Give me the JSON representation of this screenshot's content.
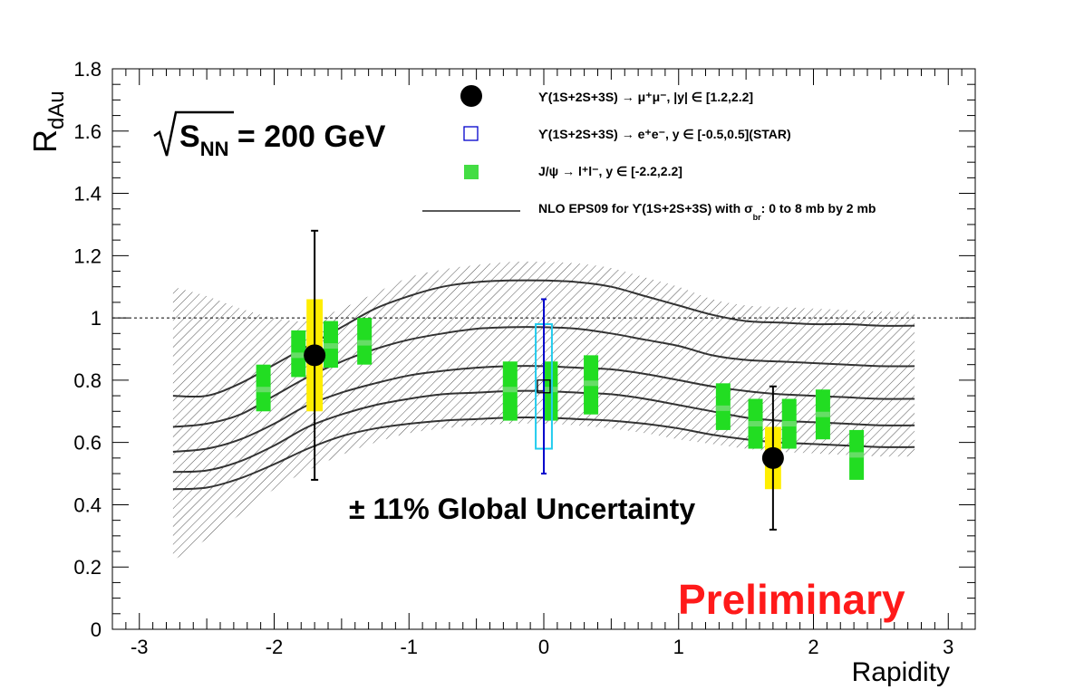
{
  "chart_data": {
    "type": "scatter",
    "ylabel_main": "R",
    "ylabel_sub": "dAu",
    "xlabel": "Rapidity",
    "xlim": [
      -3.2,
      3.2
    ],
    "ylim": [
      0,
      1.8
    ],
    "x_ticks": [
      {
        "value": -3,
        "label": "-3"
      },
      {
        "value": -2,
        "label": "-2"
      },
      {
        "value": -1,
        "label": "-1"
      },
      {
        "value": 0,
        "label": "0"
      },
      {
        "value": 1,
        "label": "1"
      },
      {
        "value": 2,
        "label": "2"
      },
      {
        "value": 3,
        "label": "3"
      }
    ],
    "y_ticks": [
      {
        "value": 0,
        "label": "0"
      },
      {
        "value": 0.2,
        "label": "0.2"
      },
      {
        "value": 0.4,
        "label": "0.4"
      },
      {
        "value": 0.6,
        "label": "0.6"
      },
      {
        "value": 0.8,
        "label": "0.8"
      },
      {
        "value": 1.0,
        "label": "1"
      },
      {
        "value": 1.2,
        "label": "1.2"
      },
      {
        "value": 1.4,
        "label": "1.4"
      },
      {
        "value": 1.6,
        "label": "1.6"
      },
      {
        "value": 1.8,
        "label": "1.8"
      }
    ],
    "reference_line": 1.0,
    "energy_label": {
      "prefix": "S",
      "sub": "NN",
      "suffix": " = 200 GeV"
    },
    "global_uncertainty": "± 11% Global Uncertainty",
    "watermark": "Preliminary",
    "legend": [
      {
        "marker": "filled-circle",
        "text": "ϒ(1S+2S+3S)  → μ⁺μ⁻, |y| ∈ [1.2,2.2]"
      },
      {
        "marker": "open-square",
        "text": "ϒ(1S+2S+3S)  → e⁺e⁻, y ∈ [-0.5,0.5](STAR)"
      },
      {
        "marker": "green-box",
        "text": "J/ψ → l⁺l⁻, y ∈ [-2.2,2.2]"
      },
      {
        "marker": "line",
        "text": "NLO EPS09 for  ϒ(1S+2S+3S) with  σ",
        "sub": "br",
        "suffix": ": 0 to 8 mb by 2 mb"
      }
    ],
    "series": [
      {
        "name": "Upsilon dimuon",
        "color": "#000000",
        "points": [
          {
            "x": -1.7,
            "y": 0.88,
            "stat_low": 0.48,
            "stat_high": 1.28,
            "sys_low": 0.7,
            "sys_high": 1.06,
            "sys_half_width": 0.06
          },
          {
            "x": 1.7,
            "y": 0.55,
            "stat_low": 0.32,
            "stat_high": 0.78,
            "sys_low": 0.45,
            "sys_high": 0.65,
            "sys_half_width": 0.06
          }
        ]
      },
      {
        "name": "Upsilon STAR",
        "color": "#0000cc",
        "points": [
          {
            "x": 0.0,
            "y": 0.78,
            "stat_low": 0.5,
            "stat_high": 1.06,
            "sys_low": 0.58,
            "sys_high": 0.98,
            "sys_half_width": 0.06
          }
        ]
      },
      {
        "name": "J/psi",
        "color": "#22dd22",
        "points": [
          {
            "x": -2.08,
            "y": 0.77,
            "sys_low": 0.7,
            "sys_high": 0.85
          },
          {
            "x": -1.82,
            "y": 0.88,
            "sys_low": 0.81,
            "sys_high": 0.96
          },
          {
            "x": -1.58,
            "y": 0.91,
            "sys_low": 0.84,
            "sys_high": 0.99
          },
          {
            "x": -1.33,
            "y": 0.92,
            "sys_low": 0.85,
            "sys_high": 1.0
          },
          {
            "x": -0.25,
            "y": 0.77,
            "sys_low": 0.67,
            "sys_high": 0.86
          },
          {
            "x": 0.05,
            "y": 0.77,
            "sys_low": 0.67,
            "sys_high": 0.86
          },
          {
            "x": 0.35,
            "y": 0.79,
            "sys_low": 0.69,
            "sys_high": 0.88
          },
          {
            "x": 1.33,
            "y": 0.71,
            "sys_low": 0.64,
            "sys_high": 0.79
          },
          {
            "x": 1.57,
            "y": 0.66,
            "sys_low": 0.58,
            "sys_high": 0.74
          },
          {
            "x": 1.82,
            "y": 0.66,
            "sys_low": 0.58,
            "sys_high": 0.74
          },
          {
            "x": 2.07,
            "y": 0.69,
            "sys_low": 0.61,
            "sys_high": 0.77
          },
          {
            "x": 2.32,
            "y": 0.56,
            "sys_low": 0.48,
            "sys_high": 0.64
          }
        ]
      }
    ],
    "nlo_curves": {
      "x": [
        -2.75,
        -2.5,
        -2.25,
        -2.0,
        -1.75,
        -1.5,
        -1.25,
        -1.0,
        -0.75,
        -0.5,
        -0.25,
        0.0,
        0.25,
        0.5,
        0.75,
        1.0,
        1.25,
        1.5,
        1.75,
        2.0,
        2.25,
        2.5,
        2.75
      ],
      "curves": [
        {
          "sigma_mb": 0,
          "y": [
            0.75,
            0.75,
            0.79,
            0.85,
            0.91,
            0.97,
            1.03,
            1.07,
            1.1,
            1.115,
            1.12,
            1.12,
            1.115,
            1.1,
            1.07,
            1.04,
            1.01,
            0.99,
            0.985,
            0.98,
            0.98,
            0.975,
            0.975
          ]
        },
        {
          "sigma_mb": 2,
          "y": [
            0.65,
            0.66,
            0.69,
            0.75,
            0.81,
            0.86,
            0.9,
            0.93,
            0.95,
            0.965,
            0.97,
            0.97,
            0.965,
            0.95,
            0.93,
            0.91,
            0.88,
            0.865,
            0.86,
            0.855,
            0.85,
            0.845,
            0.845
          ]
        },
        {
          "sigma_mb": 4,
          "y": [
            0.57,
            0.58,
            0.61,
            0.66,
            0.72,
            0.76,
            0.79,
            0.815,
            0.83,
            0.84,
            0.845,
            0.845,
            0.84,
            0.835,
            0.82,
            0.8,
            0.78,
            0.765,
            0.755,
            0.75,
            0.745,
            0.74,
            0.74
          ]
        },
        {
          "sigma_mb": 6,
          "y": [
            0.505,
            0.51,
            0.54,
            0.59,
            0.65,
            0.69,
            0.72,
            0.74,
            0.755,
            0.76,
            0.765,
            0.765,
            0.76,
            0.755,
            0.74,
            0.72,
            0.7,
            0.68,
            0.67,
            0.665,
            0.66,
            0.655,
            0.655
          ]
        },
        {
          "sigma_mb": 8,
          "y": [
            0.45,
            0.455,
            0.485,
            0.53,
            0.58,
            0.62,
            0.645,
            0.66,
            0.67,
            0.675,
            0.68,
            0.68,
            0.675,
            0.67,
            0.66,
            0.645,
            0.625,
            0.61,
            0.6,
            0.595,
            0.59,
            0.585,
            0.585
          ]
        }
      ],
      "band_upper": [
        1.1,
        1.07,
        1.03,
        1.0,
        0.99,
        1.03,
        1.08,
        1.13,
        1.155,
        1.17,
        1.18,
        1.18,
        1.175,
        1.16,
        1.13,
        1.1,
        1.06,
        1.04,
        1.035,
        1.03,
        1.025,
        1.02,
        1.02
      ],
      "band_lower": [
        0.22,
        0.29,
        0.37,
        0.45,
        0.51,
        0.56,
        0.6,
        0.63,
        0.645,
        0.655,
        0.66,
        0.66,
        0.655,
        0.645,
        0.63,
        0.61,
        0.595,
        0.58,
        0.57,
        0.565,
        0.56,
        0.555,
        0.555
      ]
    }
  }
}
